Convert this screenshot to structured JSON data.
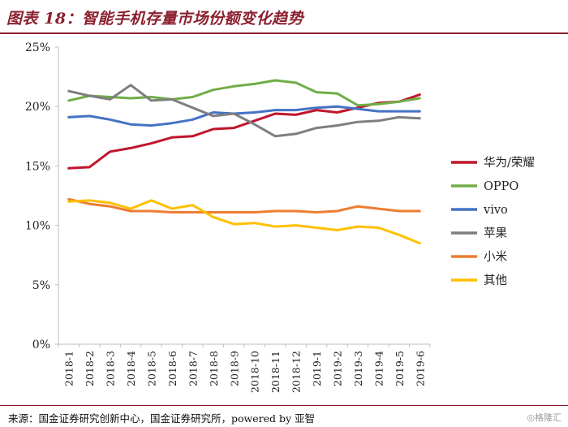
{
  "header": {
    "title": "图表 18：智能手机存量市场份额变化趋势"
  },
  "footer": {
    "source": "来源：国金证券研究创新中心，国金证券研究所，powered by 亚智",
    "watermark": "◎格隆汇"
  },
  "colors": {
    "huawei": "#c0152b",
    "oppo": "#70ad47",
    "vivo": "#4472c4",
    "apple": "#7f7f7f",
    "xiaomi": "#ed7d31",
    "other": "#ffc000",
    "axis": "#bfbfbf",
    "accent": "#8b1f2e"
  },
  "chart_data": {
    "type": "line",
    "title": "智能手机存量市场份额变化趋势",
    "xlabel": "",
    "ylabel": "",
    "ylim": [
      0,
      25
    ],
    "y_ticks": [
      "0%",
      "5%",
      "10%",
      "15%",
      "20%",
      "25%"
    ],
    "y_tick_values": [
      0,
      5,
      10,
      15,
      20,
      25
    ],
    "grid": false,
    "legend_position": "right",
    "categories": [
      "2018-1",
      "2018-2",
      "2018-3",
      "2018-4",
      "2018-5",
      "2018-6",
      "2018-7",
      "2018-8",
      "2018-9",
      "2018-10",
      "2018-11",
      "2018-12",
      "2019-1",
      "2019-2",
      "2019-3",
      "2019-4",
      "2019-5",
      "2019-6"
    ],
    "series": [
      {
        "name": "华为/荣耀",
        "color_key": "huawei",
        "values": [
          14.8,
          14.9,
          16.2,
          16.5,
          16.9,
          17.4,
          17.5,
          18.1,
          18.2,
          18.8,
          19.4,
          19.3,
          19.7,
          19.5,
          19.9,
          20.3,
          20.4,
          21.0
        ]
      },
      {
        "name": "OPPO",
        "color_key": "oppo",
        "values": [
          20.5,
          20.9,
          20.8,
          20.7,
          20.8,
          20.6,
          20.8,
          21.4,
          21.7,
          21.9,
          22.2,
          22.0,
          21.2,
          21.1,
          20.1,
          20.2,
          20.4,
          20.7
        ]
      },
      {
        "name": "vivo",
        "color_key": "vivo",
        "values": [
          19.1,
          19.2,
          18.9,
          18.5,
          18.4,
          18.6,
          18.9,
          19.5,
          19.4,
          19.5,
          19.7,
          19.7,
          19.9,
          20.0,
          19.8,
          19.6,
          19.6,
          19.6
        ]
      },
      {
        "name": "苹果",
        "color_key": "apple",
        "values": [
          21.3,
          20.9,
          20.6,
          21.8,
          20.5,
          20.6,
          19.9,
          19.2,
          19.4,
          18.5,
          17.5,
          17.7,
          18.2,
          18.4,
          18.7,
          18.8,
          19.1,
          19.0
        ]
      },
      {
        "name": "小米",
        "color_key": "xiaomi",
        "values": [
          12.2,
          11.8,
          11.6,
          11.2,
          11.2,
          11.1,
          11.1,
          11.1,
          11.1,
          11.1,
          11.2,
          11.2,
          11.1,
          11.2,
          11.6,
          11.4,
          11.2,
          11.2
        ]
      },
      {
        "name": "其他",
        "color_key": "other",
        "values": [
          12.0,
          12.1,
          11.9,
          11.4,
          12.1,
          11.4,
          11.7,
          10.7,
          10.1,
          10.2,
          9.9,
          10.0,
          9.8,
          9.6,
          9.9,
          9.8,
          9.2,
          8.5
        ]
      }
    ]
  }
}
